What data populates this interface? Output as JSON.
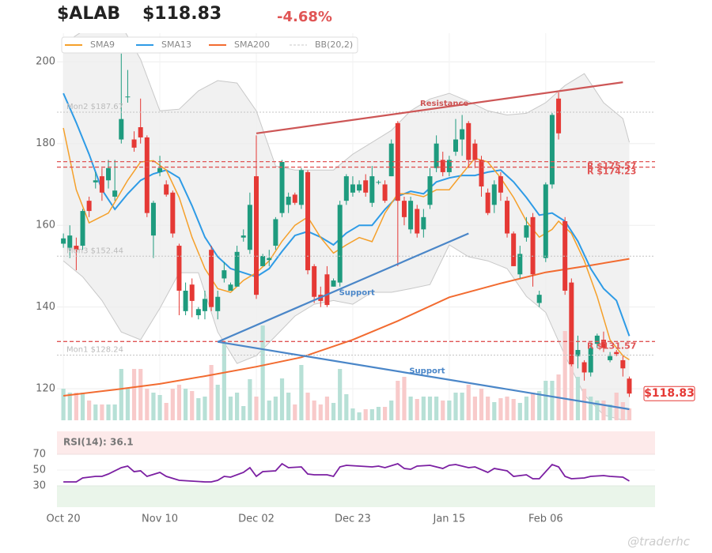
{
  "chart_data": {
    "type": "candlestick",
    "title": "$ALAB",
    "price": "$118.83",
    "change": "-4.68%",
    "watermark": "@traderhc",
    "legend": "upper left",
    "xlim": [
      -1,
      92
    ],
    "xticks": [
      {
        "value": 0,
        "label": "Oct 20"
      },
      {
        "value": 15,
        "label": "Nov 10"
      },
      {
        "value": 30,
        "label": "Dec 02"
      },
      {
        "value": 45,
        "label": "Dec 23"
      },
      {
        "value": 60,
        "label": "Jan 15"
      },
      {
        "value": 75,
        "label": "Feb 06"
      }
    ],
    "ylim": [
      112.3,
      207
    ],
    "yticks": [
      120,
      140,
      160,
      180,
      200
    ],
    "grid": true,
    "up_color": "#1e9b7e",
    "down_color": "#e53935",
    "open": [
      155.5,
      154.5,
      155,
      155,
      166,
      170.5,
      172,
      171,
      167,
      181,
      191.5,
      181,
      184,
      181.5,
      157.5,
      173,
      170,
      168,
      155,
      139,
      145.5,
      138,
      139,
      154,
      139,
      147,
      144,
      145,
      157,
      154,
      172,
      150,
      151.5,
      155,
      163,
      165,
      167.5,
      165,
      173,
      150,
      143,
      148,
      145,
      146,
      166,
      168,
      168.5,
      171,
      165.5,
      170.5,
      170,
      172,
      185,
      166,
      159,
      164,
      159,
      165,
      174,
      176,
      173,
      178,
      181,
      185,
      180,
      176,
      168,
      165,
      172,
      166,
      158,
      148,
      157,
      162,
      141,
      152,
      170,
      191,
      161,
      146,
      128,
      126.5,
      124,
      131,
      132,
      127,
      129,
      127,
      122.5
    ],
    "high": [
      158,
      160,
      157,
      164,
      167,
      173,
      174,
      176,
      176,
      202,
      198,
      183,
      191,
      182,
      166,
      177,
      171,
      168.5,
      155.5,
      146,
      147,
      140,
      144,
      155,
      144,
      151,
      146,
      155,
      159,
      168,
      182,
      153,
      154,
      162,
      176,
      168,
      168,
      174,
      173.5,
      150.5,
      145,
      150,
      147,
      166,
      172.5,
      172,
      171,
      172.5,
      174.5,
      171,
      171,
      181,
      185.5,
      167,
      167,
      165,
      164,
      174,
      182,
      178,
      177,
      186,
      187,
      185.5,
      181,
      177,
      169,
      171,
      173,
      167,
      158.5,
      155,
      162,
      163,
      144,
      170.5,
      187.5,
      192.5,
      162,
      147,
      133,
      127,
      131,
      133.5,
      134,
      129,
      129.5,
      128,
      123
    ],
    "low": [
      154.5,
      152,
      149,
      154,
      162,
      169,
      166,
      169,
      166,
      180,
      190,
      178,
      180,
      162,
      152,
      172,
      167,
      157,
      138,
      138,
      137.5,
      137,
      137,
      139,
      137,
      146,
      144,
      145,
      156,
      153,
      142,
      150,
      150,
      154,
      162,
      163,
      165,
      164,
      148,
      141,
      140,
      140,
      145,
      145,
      165,
      167,
      168,
      167,
      164.5,
      170,
      165.5,
      172,
      150,
      160,
      158,
      157,
      157,
      164,
      173,
      172,
      172,
      177,
      177,
      174,
      174,
      167,
      162.5,
      163,
      166,
      157,
      150,
      147,
      156,
      145,
      140,
      151,
      169,
      181,
      143,
      125.5,
      125,
      122,
      123,
      130,
      129,
      126.5,
      128,
      123,
      118
    ],
    "close": [
      156.8,
      157.5,
      154,
      163.5,
      163.5,
      171,
      168,
      174,
      168.5,
      186,
      191.5,
      179,
      181.5,
      163,
      165.5,
      174,
      167.5,
      158,
      144,
      144,
      141.5,
      139.5,
      142,
      140,
      142.5,
      149,
      145.5,
      153.5,
      157.5,
      165,
      143,
      152.5,
      152,
      161.5,
      175.5,
      167,
      165.5,
      173.5,
      149,
      142.5,
      141.5,
      140.5,
      146.5,
      165,
      172,
      170,
      170,
      168,
      172,
      170.6,
      166,
      180,
      166,
      162,
      166,
      158,
      162,
      172,
      180,
      173,
      176,
      181,
      183.5,
      176,
      176,
      169.5,
      163,
      170,
      168,
      158,
      150,
      153,
      160,
      148,
      143,
      170,
      187,
      182.5,
      144,
      126,
      129.5,
      124,
      130,
      133,
      130,
      128,
      128.5,
      125,
      118.83
    ],
    "volume": {
      "ylim": [
        0,
        20
      ],
      "up_color": "#b7e0d6",
      "down_color": "#f8caca",
      "values": [
        4,
        3.5,
        3.5,
        3.5,
        2.5,
        2,
        2,
        2,
        2,
        6.5,
        4,
        6.5,
        6.5,
        4,
        3.5,
        3.2,
        2.2,
        4,
        4.5,
        4,
        3.7,
        2.8,
        3,
        7,
        4.5,
        10,
        3,
        3.5,
        1.8,
        5.2,
        3,
        12,
        2.5,
        3,
        5.3,
        3.5,
        2,
        7,
        3.5,
        2.5,
        2,
        3,
        2.2,
        6.5,
        3.3,
        1.5,
        1,
        1.4,
        1.4,
        1.7,
        1.7,
        2.5,
        5,
        5.5,
        3,
        2.7,
        3,
        3,
        3,
        2.5,
        2.5,
        3.5,
        3.5,
        4.5,
        3,
        4,
        3,
        2.3,
        2.8,
        3,
        2.7,
        2.2,
        3,
        3.5,
        3.7,
        5,
        5,
        5.8,
        11.3,
        11,
        5.5,
        4,
        3,
        2.5,
        2.5,
        2,
        3.5,
        2.3,
        1.5
      ]
    },
    "bollinger": {
      "name": "BB(20,2)",
      "color": "#c8c8c8",
      "fill": "#ececec",
      "x": [
        0,
        3,
        6,
        9,
        12,
        15,
        18,
        21,
        24,
        27,
        30,
        33,
        36,
        39,
        42,
        45,
        48,
        51,
        54,
        57,
        60,
        63,
        66,
        69,
        72,
        75,
        78,
        81,
        84,
        87,
        88
      ],
      "upper": [
        204.4,
        207.5,
        209,
        209,
        200.6,
        188,
        188.4,
        192.9,
        195.4,
        194.8,
        188,
        174.5,
        173.5,
        173.5,
        173.5,
        177.4,
        180.3,
        183.2,
        188,
        190.9,
        192.3,
        190.3,
        188,
        187,
        187.4,
        190,
        194.2,
        197.1,
        190,
        186.1,
        180.3
      ],
      "lower": [
        151.3,
        147.4,
        141.6,
        133.9,
        132,
        139.7,
        148.4,
        148.4,
        133.9,
        126.2,
        128.1,
        132.9,
        137.8,
        140.7,
        141.6,
        140.7,
        143.6,
        143.6,
        144.5,
        145.5,
        155.2,
        152.3,
        151.3,
        149.4,
        142.6,
        138.7,
        128.1,
        118.5,
        113.6,
        112.3,
        112.3
      ]
    },
    "overlays": [
      {
        "name": "SMA9",
        "color": "#f5a02a",
        "x": [
          0,
          2,
          4,
          7,
          10,
          12,
          14,
          16,
          18,
          20,
          22,
          24,
          26,
          28,
          30,
          32,
          34,
          36,
          38,
          40,
          42,
          44,
          46,
          48,
          50,
          52,
          54,
          56,
          58,
          60,
          62,
          64,
          66,
          68,
          70,
          72,
          74,
          76,
          77,
          79,
          81,
          83,
          85,
          87,
          88
        ],
        "values": [
          183.8,
          168.7,
          160.6,
          163,
          171,
          175.5,
          175.8,
          173.5,
          166.8,
          157.1,
          149.4,
          144.5,
          143.6,
          146.5,
          148.4,
          151.3,
          156.1,
          160,
          162,
          157,
          153.2,
          155.2,
          157,
          156,
          163,
          167.7,
          167.7,
          167,
          168.7,
          168.7,
          172.6,
          176.4,
          175.5,
          171.6,
          166.8,
          161,
          157.1,
          159,
          161,
          158,
          151.3,
          142.6,
          132,
          128.1,
          127.1
        ]
      },
      {
        "name": "SMA13",
        "color": "#2e9be6",
        "x": [
          0,
          2,
          4,
          6,
          8,
          10,
          12,
          14,
          16,
          18,
          20,
          22,
          24,
          26,
          28,
          30,
          32,
          34,
          36,
          38,
          40,
          42,
          44,
          46,
          48,
          50,
          52,
          54,
          56,
          58,
          60,
          62,
          64,
          66,
          68,
          70,
          72,
          74,
          76,
          78,
          80,
          82,
          84,
          86,
          88
        ],
        "values": [
          192.3,
          185.1,
          177.4,
          168.7,
          163.9,
          167.7,
          171,
          172.6,
          173.5,
          171.6,
          164.8,
          157.1,
          152.3,
          149.4,
          148.4,
          147.4,
          149.4,
          153.6,
          157.5,
          158.5,
          157.1,
          155.2,
          158.1,
          160,
          160,
          163.9,
          167.1,
          168.3,
          167.7,
          170.6,
          171.6,
          172.2,
          172.2,
          173,
          173.5,
          170.6,
          166.8,
          162.5,
          163,
          161,
          156.1,
          149.4,
          144.5,
          141.6,
          132.9
        ]
      },
      {
        "name": "SMA200",
        "color": "#f26b30",
        "x": [
          0,
          8,
          15,
          22,
          30,
          37,
          45,
          52,
          60,
          68,
          75,
          82,
          88
        ],
        "values": [
          118.3,
          119.8,
          121.2,
          123.1,
          125.4,
          127.7,
          132,
          136.6,
          142.4,
          145.8,
          148.5,
          150.2,
          151.8
        ]
      }
    ],
    "levels": [
      {
        "value": 187.67,
        "label": "Mon2 $187.67",
        "color": "#c4c4c4",
        "style": "dotted"
      },
      {
        "value": 152.44,
        "label": "Mon3 $152.44",
        "color": "#c4c4c4",
        "style": "dotted"
      },
      {
        "value": 128.24,
        "label": "Mon1 $128.24",
        "color": "#c4c4c4",
        "style": "dotted"
      },
      {
        "value": 175.57,
        "label": "R $175.57",
        "color": "#e05555",
        "style": "dashed"
      },
      {
        "value": 174.23,
        "label": "R $174.23",
        "color": "#e05555",
        "style": "dashed"
      },
      {
        "value": 131.57,
        "label": "R $131.57",
        "color": "#e05555",
        "style": "dashed"
      }
    ],
    "trendlines": [
      {
        "name": "Resistance",
        "color": "#cd5656",
        "x": [
          30,
          87
        ],
        "values": [
          182.5,
          195
        ]
      },
      {
        "name": "Support",
        "color": "#4a86c8",
        "x": [
          24,
          63
        ],
        "values": [
          131.5,
          158
        ]
      },
      {
        "name": "Support",
        "color": "#4a86c8",
        "x": [
          24,
          88
        ],
        "values": [
          131.5,
          115
        ]
      }
    ],
    "last_price": {
      "value": 118.83,
      "label": "$118.83",
      "color": "#e53935"
    },
    "rsi": {
      "label": "RSI(14): 36.1",
      "color": "#7b1fa2",
      "ylim": [
        3,
        99
      ],
      "yticks": [
        30,
        50,
        70
      ],
      "overbought": 70,
      "oversold": 30,
      "x": [
        0,
        2,
        3,
        5,
        6,
        7,
        9,
        10,
        11,
        12,
        13,
        15,
        16,
        18,
        20,
        22,
        23,
        24,
        25,
        26,
        28,
        29,
        30,
        31,
        33,
        34,
        35,
        37,
        38,
        39,
        41,
        42,
        43,
        44,
        46,
        48,
        49,
        50,
        52,
        53,
        54,
        55,
        57,
        59,
        60,
        61,
        63,
        64,
        66,
        67,
        69,
        70,
        72,
        73,
        74,
        76,
        77,
        78,
        79,
        81,
        82,
        84,
        85,
        87,
        88
      ],
      "values": [
        35,
        35,
        40,
        42,
        42,
        45,
        53,
        55,
        48,
        49,
        42,
        47,
        42,
        37,
        36,
        35,
        35,
        37,
        42,
        41,
        47,
        53,
        42,
        48,
        49,
        58,
        53,
        54,
        45,
        44,
        44,
        42,
        54,
        56,
        55,
        54,
        55,
        53,
        58,
        52,
        51,
        55,
        56,
        52,
        56,
        57,
        53,
        54,
        47,
        52,
        49,
        42,
        44,
        39,
        39,
        57,
        54,
        42,
        39,
        40,
        42,
        43,
        42,
        41,
        36.1
      ]
    }
  }
}
